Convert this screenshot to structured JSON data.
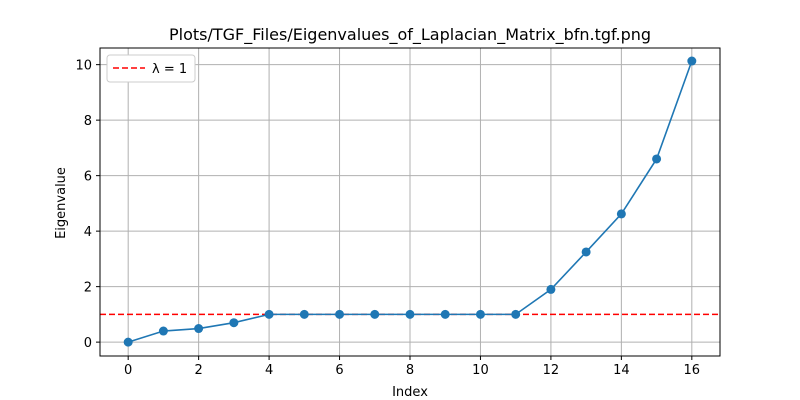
{
  "chart_data": {
    "type": "line",
    "title": "Plots/TGF_Files/Eigenvalues_of_Laplacian_Matrix_bfn.tgf.png",
    "xlabel": "Index",
    "ylabel": "Eigenvalue",
    "xlim": [
      -0.8,
      16.8
    ],
    "ylim": [
      -0.5,
      10.6
    ],
    "xticks": [
      0,
      2,
      4,
      6,
      8,
      10,
      12,
      14,
      16
    ],
    "yticks": [
      0,
      2,
      4,
      6,
      8,
      10
    ],
    "grid": true,
    "legend_position": "top-left",
    "series": [
      {
        "name": "",
        "color": "#1f77b4",
        "marker": "circle",
        "x": [
          0,
          1,
          2,
          3,
          4,
          5,
          6,
          7,
          8,
          9,
          10,
          11,
          12,
          13,
          14,
          15,
          16
        ],
        "y": [
          0,
          0.4,
          0.49,
          0.7,
          1.0,
          1.0,
          1.0,
          1.0,
          1.0,
          1.0,
          1.0,
          1.0,
          1.9,
          3.25,
          4.62,
          6.6,
          10.13
        ]
      }
    ],
    "reference_lines": [
      {
        "orientation": "horizontal",
        "y": 1,
        "label": "λ = 1",
        "color": "#ff0000",
        "style": "dashed"
      }
    ]
  }
}
